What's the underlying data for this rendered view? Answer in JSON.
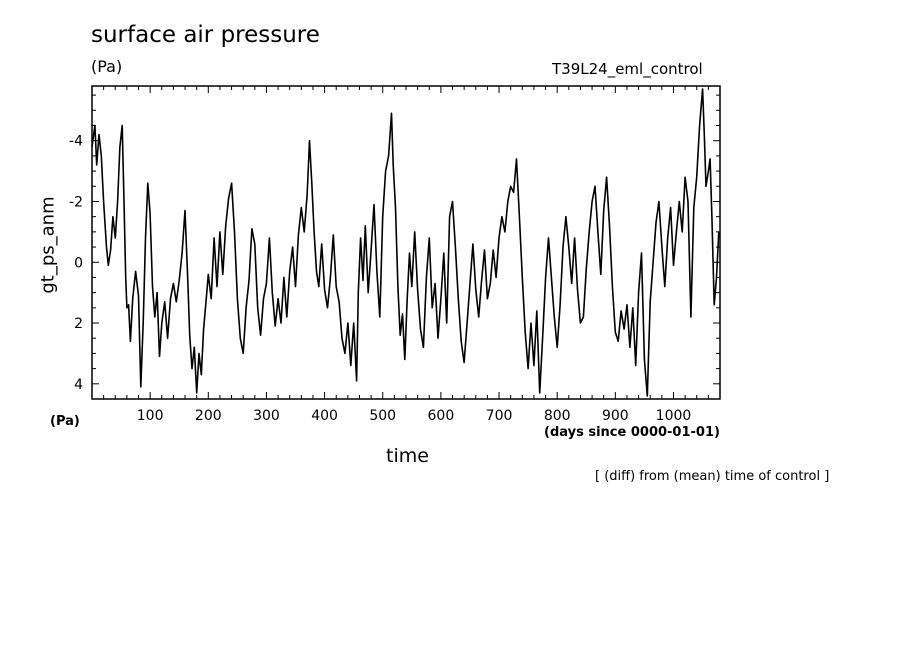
{
  "chart_data": {
    "type": "line",
    "title": "surface air pressure",
    "unit_label": "(Pa)",
    "experiment": "T39L24_eml_control",
    "ylabel": "gt_ps_anm",
    "y_unit_label": "(Pa)",
    "xlabel": "time",
    "x_unit_label": "(days since 0000-01-01)",
    "note": "[ (diff) from (mean) time of control ]",
    "xlim": [
      0,
      1080
    ],
    "ylim": [
      4.5,
      -5.8
    ],
    "y_inverted": true,
    "x_ticks": [
      100,
      200,
      300,
      400,
      500,
      600,
      700,
      800,
      900,
      1000
    ],
    "y_ticks": [
      -4,
      -2,
      0,
      2,
      4
    ],
    "y_tick_labels": [
      "-4",
      "-2",
      "0",
      "2",
      "4"
    ],
    "grid": false,
    "legend": "none",
    "series": [
      {
        "color": "#000000",
        "points": [
          [
            0,
            -3.8
          ],
          [
            5,
            -4.5
          ],
          [
            8,
            -3.2
          ],
          [
            12,
            -4.2
          ],
          [
            16,
            -3.5
          ],
          [
            20,
            -2.0
          ],
          [
            25,
            -0.5
          ],
          [
            28,
            0.1
          ],
          [
            32,
            -0.4
          ],
          [
            36,
            -1.5
          ],
          [
            40,
            -0.8
          ],
          [
            44,
            -2.0
          ],
          [
            48,
            -3.8
          ],
          [
            52,
            -4.5
          ],
          [
            55,
            -2.0
          ],
          [
            58,
            0.5
          ],
          [
            60,
            1.5
          ],
          [
            63,
            1.4
          ],
          [
            66,
            2.6
          ],
          [
            70,
            1.2
          ],
          [
            75,
            0.3
          ],
          [
            80,
            1.1
          ],
          [
            84,
            4.1
          ],
          [
            88,
            2.0
          ],
          [
            92,
            -0.8
          ],
          [
            96,
            -2.6
          ],
          [
            100,
            -1.6
          ],
          [
            104,
            0.8
          ],
          [
            108,
            1.8
          ],
          [
            112,
            1.0
          ],
          [
            116,
            3.1
          ],
          [
            120,
            2.0
          ],
          [
            125,
            1.3
          ],
          [
            130,
            2.5
          ],
          [
            135,
            1.2
          ],
          [
            140,
            0.7
          ],
          [
            145,
            1.3
          ],
          [
            150,
            0.6
          ],
          [
            155,
            -0.3
          ],
          [
            160,
            -1.7
          ],
          [
            165,
            0.7
          ],
          [
            168,
            2.4
          ],
          [
            172,
            3.5
          ],
          [
            176,
            2.8
          ],
          [
            180,
            4.3
          ],
          [
            184,
            3.0
          ],
          [
            188,
            3.7
          ],
          [
            192,
            2.2
          ],
          [
            196,
            1.3
          ],
          [
            200,
            0.4
          ],
          [
            205,
            1.2
          ],
          [
            210,
            -0.8
          ],
          [
            215,
            0.8
          ],
          [
            220,
            -1.0
          ],
          [
            225,
            0.4
          ],
          [
            230,
            -1.2
          ],
          [
            235,
            -2.1
          ],
          [
            240,
            -2.6
          ],
          [
            245,
            -1.0
          ],
          [
            250,
            1.2
          ],
          [
            255,
            2.5
          ],
          [
            260,
            3.0
          ],
          [
            265,
            1.5
          ],
          [
            270,
            0.6
          ],
          [
            275,
            -1.1
          ],
          [
            280,
            -0.6
          ],
          [
            285,
            1.5
          ],
          [
            290,
            2.4
          ],
          [
            295,
            1.2
          ],
          [
            300,
            0.7
          ],
          [
            305,
            -0.8
          ],
          [
            310,
            1.0
          ],
          [
            315,
            2.1
          ],
          [
            320,
            1.2
          ],
          [
            325,
            2.0
          ],
          [
            330,
            0.5
          ],
          [
            335,
            1.8
          ],
          [
            340,
            0.3
          ],
          [
            345,
            -0.5
          ],
          [
            350,
            0.8
          ],
          [
            355,
            -0.9
          ],
          [
            360,
            -1.8
          ],
          [
            365,
            -1.0
          ],
          [
            370,
            -2.2
          ],
          [
            374,
            -4.0
          ],
          [
            378,
            -2.6
          ],
          [
            382,
            -1.0
          ],
          [
            386,
            0.3
          ],
          [
            390,
            0.8
          ],
          [
            395,
            -0.6
          ],
          [
            400,
            0.9
          ],
          [
            405,
            1.5
          ],
          [
            410,
            0.5
          ],
          [
            415,
            -0.9
          ],
          [
            420,
            0.8
          ],
          [
            425,
            1.3
          ],
          [
            430,
            2.5
          ],
          [
            435,
            3.0
          ],
          [
            440,
            2.0
          ],
          [
            445,
            3.4
          ],
          [
            450,
            2.0
          ],
          [
            455,
            3.9
          ],
          [
            458,
            1.0
          ],
          [
            462,
            -0.8
          ],
          [
            466,
            0.6
          ],
          [
            470,
            -1.2
          ],
          [
            475,
            1.0
          ],
          [
            480,
            -0.4
          ],
          [
            485,
            -1.9
          ],
          [
            490,
            0.3
          ],
          [
            495,
            1.8
          ],
          [
            500,
            -1.5
          ],
          [
            505,
            -3.0
          ],
          [
            510,
            -3.5
          ],
          [
            515,
            -4.9
          ],
          [
            518,
            -3.2
          ],
          [
            522,
            -1.8
          ],
          [
            526,
            0.8
          ],
          [
            530,
            2.4
          ],
          [
            534,
            1.7
          ],
          [
            538,
            3.2
          ],
          [
            542,
            1.2
          ],
          [
            546,
            -0.3
          ],
          [
            550,
            0.8
          ],
          [
            555,
            -1.0
          ],
          [
            560,
            0.9
          ],
          [
            565,
            2.2
          ],
          [
            570,
            2.8
          ],
          [
            575,
            0.5
          ],
          [
            580,
            -0.8
          ],
          [
            585,
            1.5
          ],
          [
            590,
            0.7
          ],
          [
            595,
            2.5
          ],
          [
            600,
            1.2
          ],
          [
            605,
            -0.3
          ],
          [
            610,
            2.0
          ],
          [
            615,
            -1.5
          ],
          [
            620,
            -2.0
          ],
          [
            625,
            -0.5
          ],
          [
            630,
            1.2
          ],
          [
            635,
            2.6
          ],
          [
            640,
            3.3
          ],
          [
            645,
            2.0
          ],
          [
            650,
            0.7
          ],
          [
            655,
            -0.6
          ],
          [
            660,
            0.9
          ],
          [
            665,
            1.8
          ],
          [
            670,
            0.6
          ],
          [
            675,
            -0.4
          ],
          [
            680,
            1.2
          ],
          [
            685,
            0.7
          ],
          [
            690,
            -0.4
          ],
          [
            695,
            0.5
          ],
          [
            700,
            -0.8
          ],
          [
            705,
            -1.5
          ],
          [
            710,
            -1.0
          ],
          [
            715,
            -2.0
          ],
          [
            720,
            -2.5
          ],
          [
            725,
            -2.3
          ],
          [
            730,
            -3.4
          ],
          [
            735,
            -1.5
          ],
          [
            740,
            0.5
          ],
          [
            745,
            2.3
          ],
          [
            750,
            3.5
          ],
          [
            755,
            2.0
          ],
          [
            760,
            3.4
          ],
          [
            765,
            1.6
          ],
          [
            770,
            4.3
          ],
          [
            775,
            2.5
          ],
          [
            780,
            0.5
          ],
          [
            785,
            -0.8
          ],
          [
            790,
            0.5
          ],
          [
            795,
            1.8
          ],
          [
            800,
            2.8
          ],
          [
            805,
            1.4
          ],
          [
            810,
            -0.5
          ],
          [
            815,
            -1.5
          ],
          [
            820,
            -0.5
          ],
          [
            825,
            0.7
          ],
          [
            830,
            -0.8
          ],
          [
            835,
            0.9
          ],
          [
            840,
            2.0
          ],
          [
            845,
            1.8
          ],
          [
            850,
            0.2
          ],
          [
            855,
            -1.0
          ],
          [
            860,
            -2.0
          ],
          [
            865,
            -2.5
          ],
          [
            870,
            -1.0
          ],
          [
            875,
            0.4
          ],
          [
            880,
            -1.7
          ],
          [
            885,
            -2.8
          ],
          [
            890,
            -1.2
          ],
          [
            895,
            0.8
          ],
          [
            900,
            2.3
          ],
          [
            905,
            2.6
          ],
          [
            910,
            1.6
          ],
          [
            915,
            2.2
          ],
          [
            920,
            1.4
          ],
          [
            925,
            2.8
          ],
          [
            930,
            1.5
          ],
          [
            935,
            3.4
          ],
          [
            940,
            1.0
          ],
          [
            945,
            -0.3
          ],
          [
            950,
            3.2
          ],
          [
            955,
            4.4
          ],
          [
            960,
            1.3
          ],
          [
            965,
            0.0
          ],
          [
            970,
            -1.3
          ],
          [
            975,
            -2.0
          ],
          [
            980,
            -0.5
          ],
          [
            985,
            0.8
          ],
          [
            990,
            -0.8
          ],
          [
            995,
            -1.8
          ],
          [
            1000,
            0.1
          ],
          [
            1005,
            -1.0
          ],
          [
            1010,
            -2.0
          ],
          [
            1015,
            -1.0
          ],
          [
            1020,
            -2.8
          ],
          [
            1025,
            -2.0
          ],
          [
            1030,
            1.8
          ],
          [
            1035,
            -1.8
          ],
          [
            1040,
            -2.8
          ],
          [
            1045,
            -4.5
          ],
          [
            1050,
            -5.7
          ],
          [
            1053,
            -4.2
          ],
          [
            1056,
            -2.5
          ],
          [
            1060,
            -3.0
          ],
          [
            1063,
            -3.4
          ],
          [
            1066,
            -1.5
          ],
          [
            1070,
            1.4
          ],
          [
            1074,
            0.5
          ],
          [
            1078,
            -1.0
          ]
        ]
      }
    ]
  }
}
